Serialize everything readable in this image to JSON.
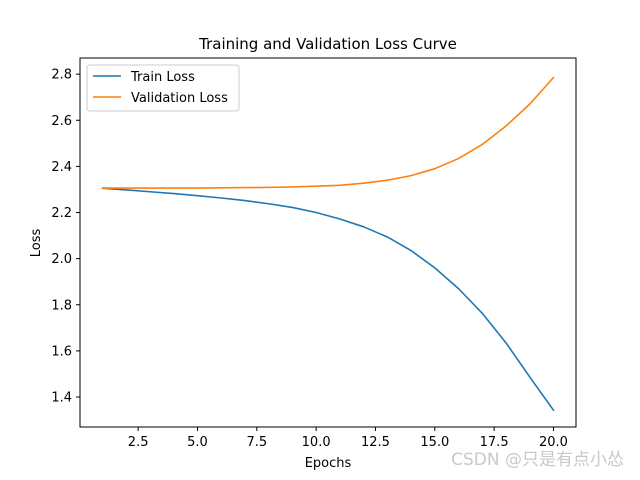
{
  "chart_data": {
    "type": "line",
    "title": "Training and Validation Loss Curve",
    "xlabel": "Epochs",
    "ylabel": "Loss",
    "xlim": [
      0.05,
      20.95
    ],
    "ylim": [
      1.27,
      2.87
    ],
    "xticks": [
      2.5,
      5.0,
      7.5,
      10.0,
      12.5,
      15.0,
      17.5,
      20.0
    ],
    "xtick_labels": [
      "2.5",
      "5.0",
      "7.5",
      "10.0",
      "12.5",
      "15.0",
      "17.5",
      "20.0"
    ],
    "yticks": [
      1.4,
      1.6,
      1.8,
      2.0,
      2.2,
      2.4,
      2.6,
      2.8
    ],
    "ytick_labels": [
      "1.4",
      "1.6",
      "1.8",
      "2.0",
      "2.2",
      "2.4",
      "2.6",
      "2.8"
    ],
    "grid": false,
    "legend_position": "top-left",
    "x": [
      1,
      2,
      3,
      4,
      5,
      6,
      7,
      8,
      9,
      10,
      11,
      12,
      13,
      14,
      15,
      16,
      17,
      18,
      19,
      20
    ],
    "series": [
      {
        "name": "Train Loss",
        "color": "#1f77b4",
        "values": [
          2.305,
          2.298,
          2.29,
          2.282,
          2.273,
          2.263,
          2.252,
          2.238,
          2.222,
          2.2,
          2.172,
          2.138,
          2.094,
          2.035,
          1.96,
          1.87,
          1.763,
          1.635,
          1.487,
          1.343
        ]
      },
      {
        "name": "Validation Loss",
        "color": "#ff7f0e",
        "values": [
          2.306,
          2.306,
          2.306,
          2.306,
          2.306,
          2.307,
          2.308,
          2.309,
          2.311,
          2.314,
          2.318,
          2.327,
          2.34,
          2.36,
          2.39,
          2.434,
          2.495,
          2.575,
          2.67,
          2.785
        ]
      }
    ]
  },
  "watermark": "CSDN @只是有点小怂"
}
